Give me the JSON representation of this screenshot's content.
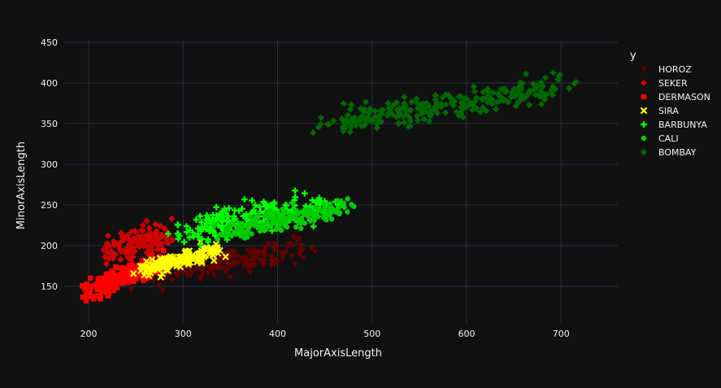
{
  "chart_data": {
    "type": "scatter",
    "title": "",
    "xlabel": "MajorAxisLength",
    "ylabel": "MinorAxisLength",
    "xlim": [
      175,
      760
    ],
    "ylim": [
      105,
      452
    ],
    "xticks": [
      200,
      300,
      400,
      500,
      600,
      700
    ],
    "yticks": [
      150,
      200,
      250,
      300,
      350,
      400,
      450
    ],
    "grid": true,
    "background": "#111111",
    "grid_color": "#283442",
    "legend": {
      "title": "y",
      "placement": "right"
    },
    "series": [
      {
        "name": "HOROZ",
        "symbol": "triangle-down",
        "color": "#660000",
        "clusters": [
          {
            "x_range": [
              240,
              440
            ],
            "y_center_at_xmin": 158,
            "slope": 0.2,
            "spread": 15,
            "n": 170
          }
        ]
      },
      {
        "name": "SEKER",
        "symbol": "diamond",
        "color": "#cc0000",
        "clusters": [
          {
            "x_range": [
              210,
              290
            ],
            "y_center_at_xmin": 190,
            "slope": 0.3,
            "spread": 18,
            "n": 140
          }
        ]
      },
      {
        "name": "DERMASON",
        "symbol": "square",
        "color": "#ff0000",
        "clusters": [
          {
            "x_range": [
              190,
              280
            ],
            "y_center_at_xmin": 140,
            "slope": 0.45,
            "spread": 12,
            "n": 190
          }
        ]
      },
      {
        "name": "SIRA",
        "symbol": "x",
        "color": "#ffff00",
        "clusters": [
          {
            "x_range": [
              250,
              345
            ],
            "y_center_at_xmin": 168,
            "slope": 0.3,
            "spread": 10,
            "n": 150
          }
        ]
      },
      {
        "name": "BARBUNYA",
        "symbol": "cross",
        "color": "#00ff00",
        "clusters": [
          {
            "x_range": [
              280,
              470
            ],
            "y_center_at_xmin": 215,
            "slope": 0.2,
            "spread": 16,
            "n": 210
          }
        ]
      },
      {
        "name": "CALI",
        "symbol": "circle",
        "color": "#00cc00",
        "clusters": [
          {
            "x_range": [
              330,
              485
            ],
            "y_center_at_xmin": 215,
            "slope": 0.22,
            "spread": 12,
            "n": 180
          }
        ]
      },
      {
        "name": "BOMBAY",
        "symbol": "diamond",
        "color": "#006600",
        "clusters": [
          {
            "x_range": [
              430,
              725
            ],
            "y_center_at_xmin": 345,
            "slope": 0.19,
            "spread": 16,
            "n": 260
          }
        ]
      }
    ]
  }
}
